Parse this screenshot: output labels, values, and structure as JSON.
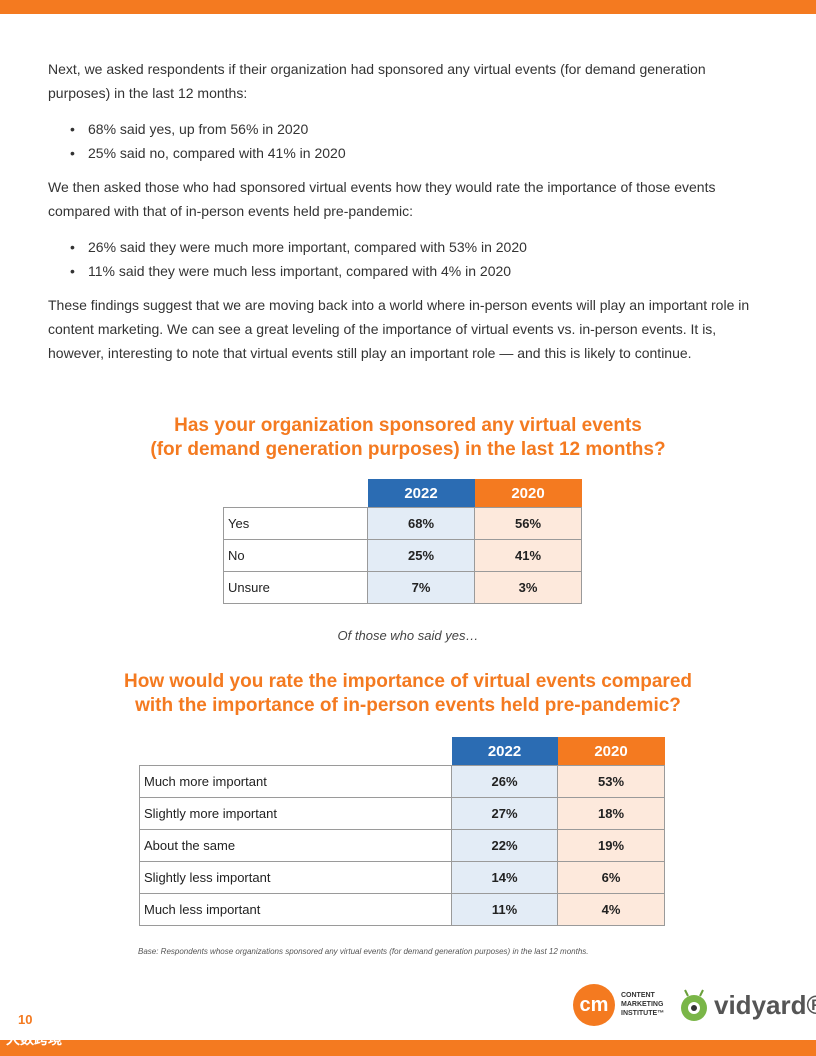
{
  "intro": {
    "p1": "Next, we asked respondents if their organization had sponsored any virtual events (for demand generation purposes) in the last 12 months:",
    "bullets1": [
      "68% said yes, up from 56% in 2020",
      "25% said no, compared with 41% in 2020"
    ],
    "p2": "We then asked those who had sponsored virtual events how they would rate the importance of those events compared with that of in-person events held pre-pandemic:",
    "bullets2": [
      "26% said they were much more important, compared with 53% in 2020",
      "11% said they were much less important, compared with 4% in 2020"
    ],
    "p3": "These findings suggest that we are moving back into a world where in-person events will play an important role in content marketing. We can see a great leveling of the importance of virtual events vs. in-person events. It is, however, interesting to note that virtual events still play an important role — and this is likely to continue."
  },
  "table1": {
    "title_line1": "Has your organization sponsored any virtual events",
    "title_line2": "(for demand generation purposes) in the last 12 months?",
    "col2022": "2022",
    "col2020": "2020",
    "rows": [
      {
        "label": "Yes",
        "v2022": "68%",
        "v2020": "56%"
      },
      {
        "label": "No",
        "v2022": "25%",
        "v2020": "41%"
      },
      {
        "label": "Unsure",
        "v2022": "7%",
        "v2020": "3%"
      }
    ]
  },
  "subnote": "Of those who said yes…",
  "table2": {
    "title_line1": "How would you rate the importance of virtual events compared",
    "title_line2": "with the importance of in-person events held pre-pandemic?",
    "col2022": "2022",
    "col2020": "2020",
    "rows": [
      {
        "label": "Much more important",
        "v2022": "26%",
        "v2020": "53%"
      },
      {
        "label": "Slightly more important",
        "v2022": "27%",
        "v2020": "18%"
      },
      {
        "label": "About the same",
        "v2022": "22%",
        "v2020": "19%"
      },
      {
        "label": "Slightly less important",
        "v2022": "14%",
        "v2020": "6%"
      },
      {
        "label": "Much less important",
        "v2022": "11%",
        "v2020": "4%"
      }
    ]
  },
  "base_note": "Base: Respondents whose organizations sponsored any virtual events (for demand generation purposes) in the last 12 months.",
  "footer": {
    "page_number": "10",
    "watermark": "大数跨境",
    "cmi_mark": "cm",
    "cmi_text": "CONTENT\nMARKETING\nINSTITUTE™",
    "vidyard_text": "vidyard®"
  },
  "colors": {
    "accent": "#f47a20",
    "blue": "#2b6cb3"
  }
}
